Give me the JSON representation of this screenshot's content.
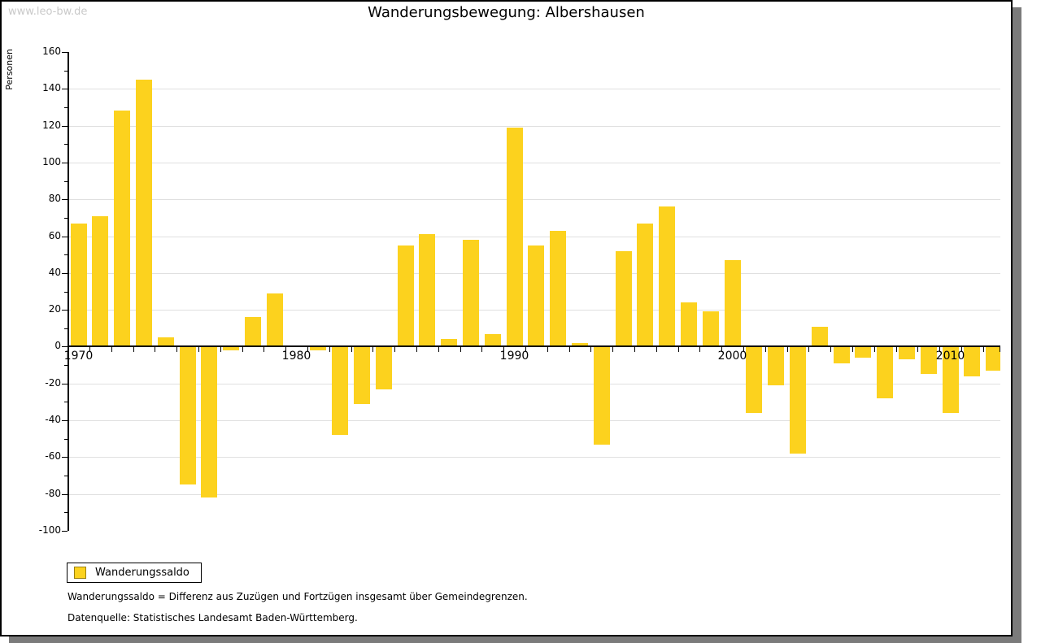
{
  "watermark": "www.leo-bw.de",
  "title": "Wanderungsbewegung: Albershausen",
  "y_axis_label": "Personen",
  "legend": {
    "label": "Wanderungssaldo"
  },
  "footer": {
    "line1": "Wanderungssaldo = Differenz aus Zuzügen und Fortzügen insgesamt über Gemeindegrenzen.",
    "line2": "Datenquelle: Statistisches Landesamt Baden-Württemberg."
  },
  "colors": {
    "bar": "#fcd21e",
    "swatch_border": "#9c8010",
    "gridline": "#e0e0e0",
    "axis": "#000000",
    "watermark": "#c9c9c9",
    "shadow": "#7b7b7b"
  },
  "chart_data": {
    "type": "bar",
    "title": "Wanderungsbewegung: Albershausen",
    "ylabel": "Personen",
    "series_name": "Wanderungssaldo",
    "years": [
      1970,
      1971,
      1972,
      1973,
      1974,
      1975,
      1976,
      1977,
      1978,
      1979,
      1980,
      1981,
      1982,
      1983,
      1984,
      1985,
      1986,
      1987,
      1988,
      1989,
      1990,
      1991,
      1992,
      1993,
      1994,
      1995,
      1996,
      1997,
      1998,
      1999,
      2000,
      2001,
      2002,
      2003,
      2004,
      2005,
      2006,
      2007,
      2008,
      2009,
      2010,
      2011,
      2012
    ],
    "values": [
      67,
      71,
      128,
      145,
      5,
      -75,
      -82,
      -2,
      16,
      29,
      0,
      -2,
      -48,
      -31,
      -23,
      55,
      61,
      4,
      58,
      7,
      119,
      55,
      63,
      2,
      -53,
      52,
      67,
      76,
      24,
      19,
      47,
      -36,
      -21,
      -58,
      11,
      -9,
      -6,
      -28,
      -7,
      -15,
      -36,
      -16,
      -13
    ],
    "ylim": [
      -100,
      160
    ],
    "ytick_step": 20,
    "ytick_minor_step": 10,
    "xticks_labeled": [
      1970,
      1980,
      1990,
      2000,
      2010
    ],
    "grid": true,
    "legend_position": "bottom-left"
  }
}
